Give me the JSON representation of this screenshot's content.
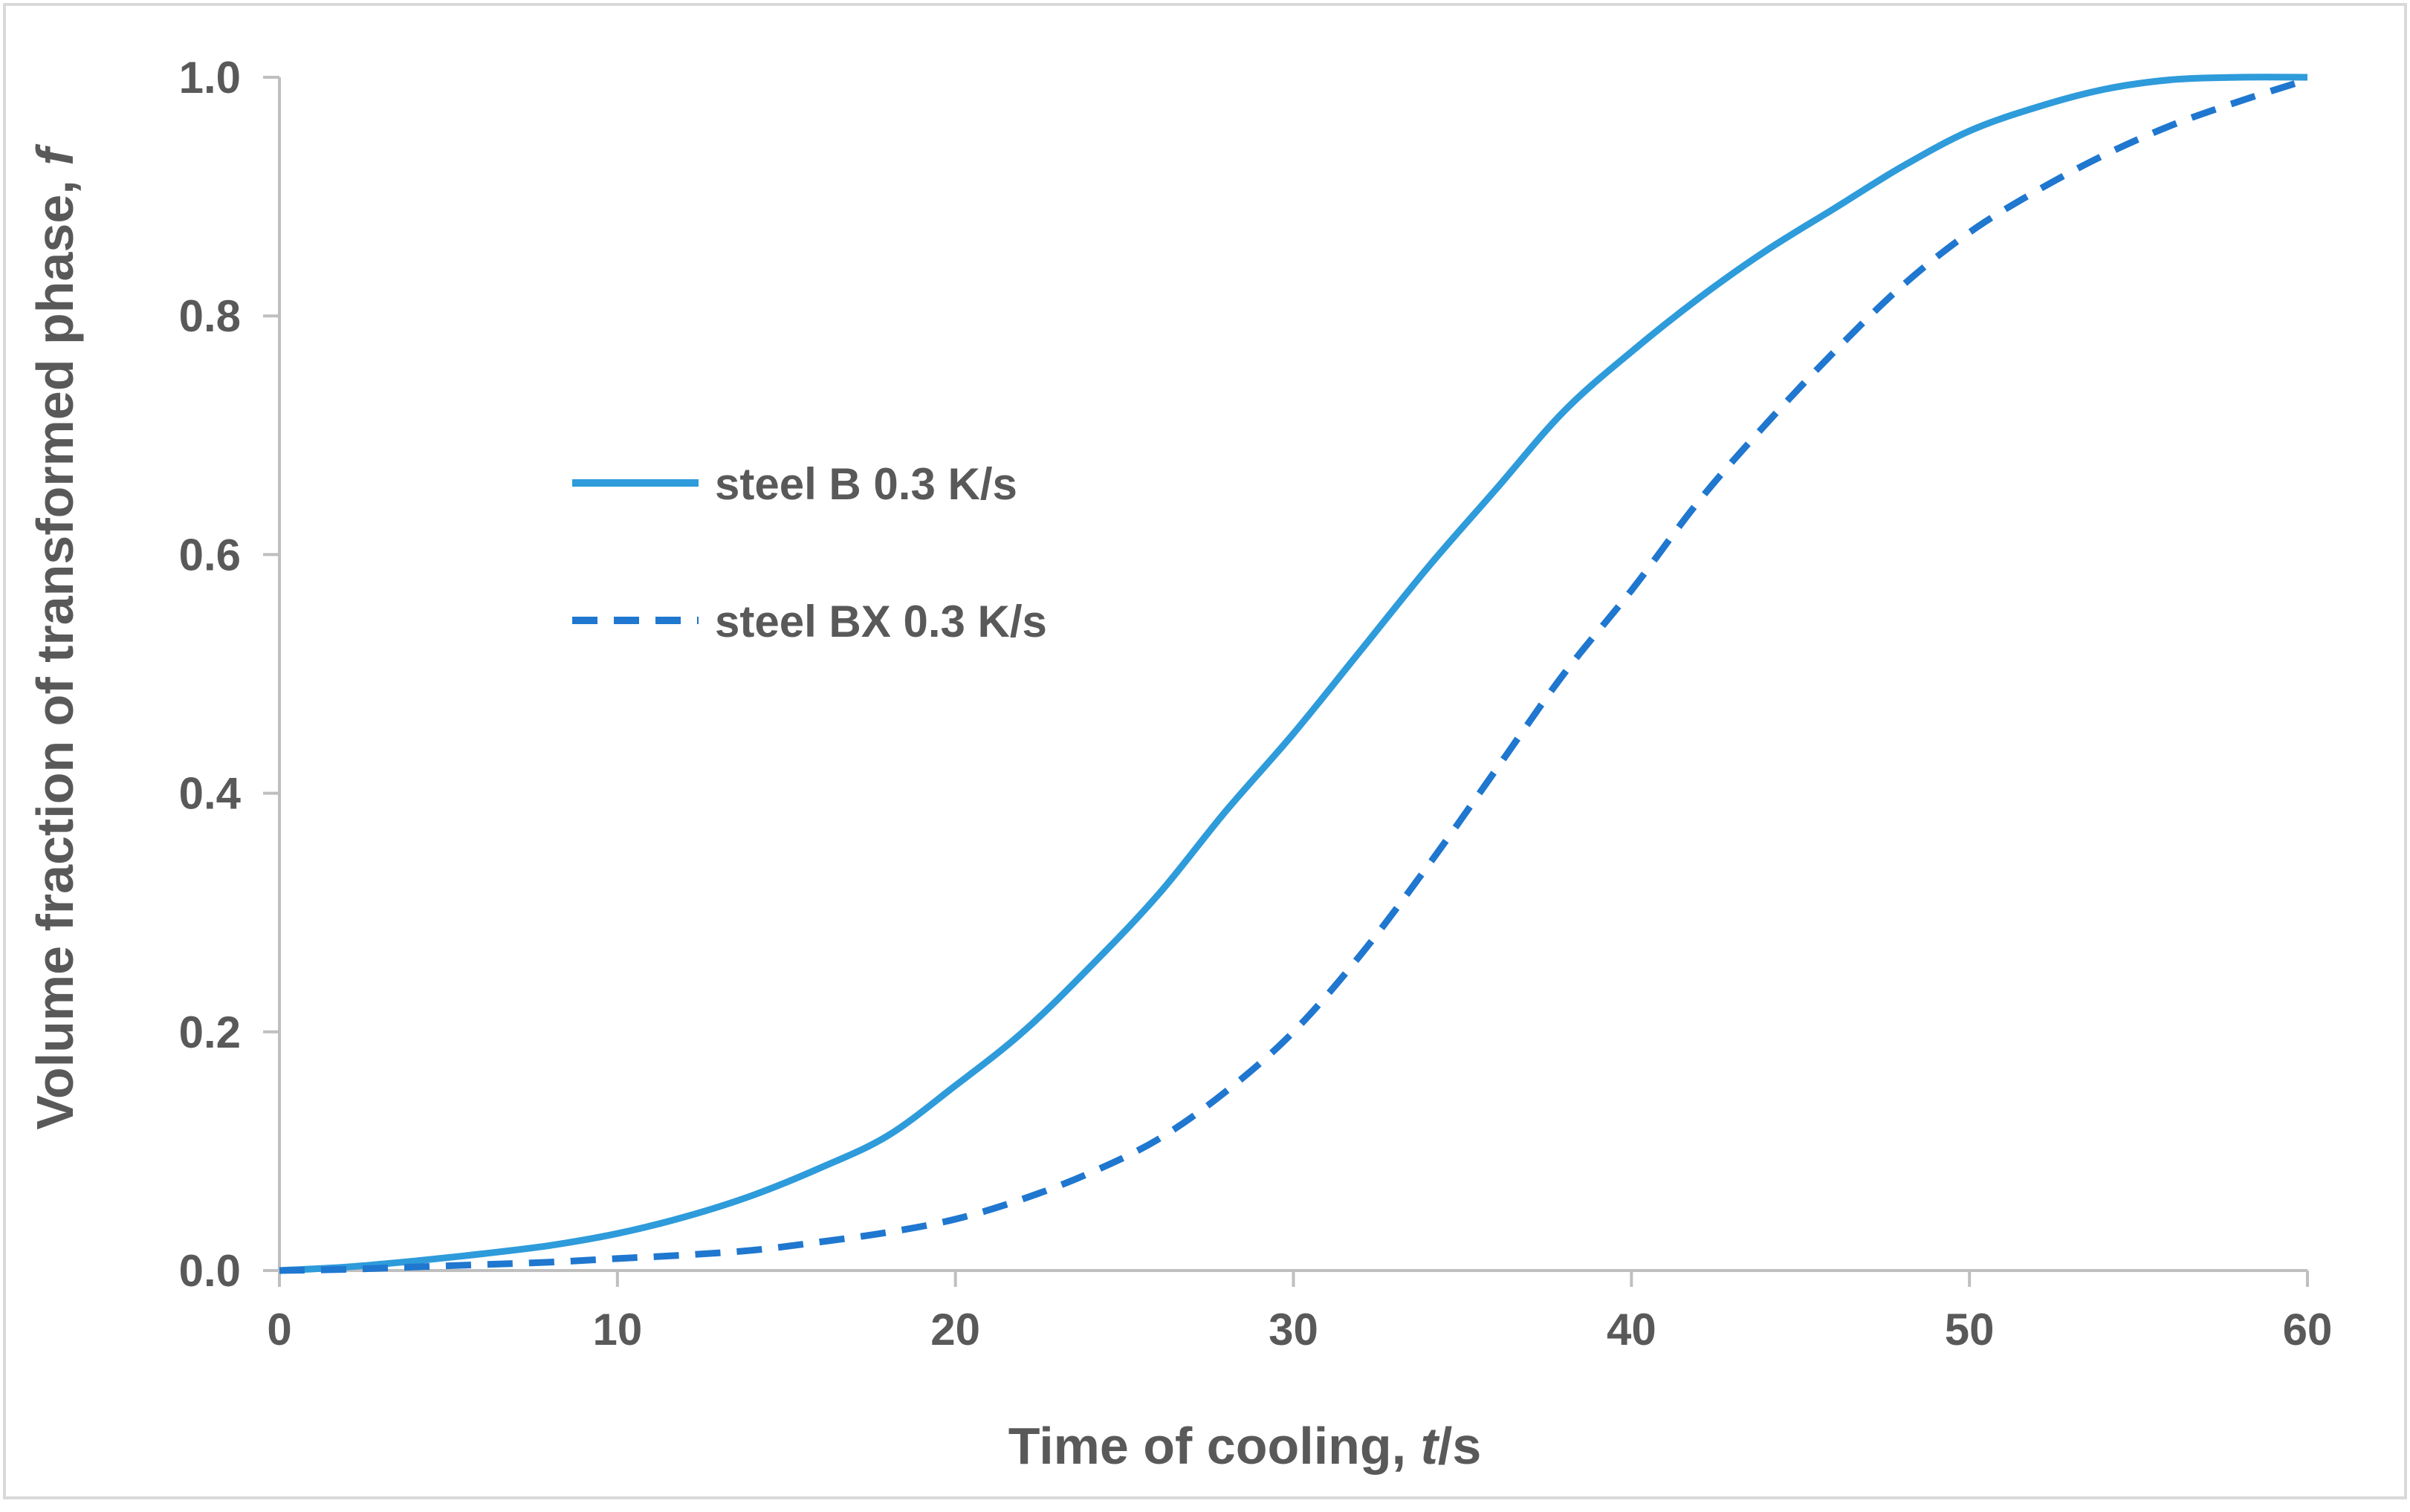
{
  "chart_data": {
    "type": "line",
    "title": "",
    "xlabel": {
      "prefix": "Time of cooling, ",
      "italic": "t",
      "suffix": "/s"
    },
    "ylabel": {
      "prefix": "Volume fraction of transformed phase, ",
      "italic": "f",
      "suffix": ""
    },
    "xlim": [
      0,
      60
    ],
    "ylim": [
      0,
      1
    ],
    "x_ticks": [
      "0",
      "10",
      "20",
      "30",
      "40",
      "50",
      "60"
    ],
    "y_ticks": [
      "0.0",
      "0.2",
      "0.4",
      "0.6",
      "0.8",
      "1.0"
    ],
    "grid": false,
    "legend_position": "upper-left-inside",
    "series": [
      {
        "name": "steel B 0.3 K/s",
        "color": "#2E9BDA",
        "style": "solid",
        "x": [
          0,
          2,
          4,
          6,
          8,
          10,
          12,
          14,
          16,
          18,
          20,
          22,
          24,
          26,
          28,
          30,
          32,
          34,
          36,
          38,
          40,
          42,
          44,
          46,
          48,
          50,
          52,
          54,
          56,
          58,
          60
        ],
        "y": [
          0.0,
          0.003,
          0.008,
          0.014,
          0.021,
          0.031,
          0.045,
          0.063,
          0.086,
          0.113,
          0.155,
          0.2,
          0.255,
          0.315,
          0.385,
          0.45,
          0.52,
          0.59,
          0.655,
          0.72,
          0.77,
          0.815,
          0.855,
          0.89,
          0.925,
          0.955,
          0.975,
          0.99,
          0.998,
          1.0,
          1.0
        ]
      },
      {
        "name": "steel BX 0.3 K/s",
        "color": "#1F77CF",
        "style": "dashed",
        "x": [
          0,
          2,
          4,
          6,
          8,
          10,
          12,
          14,
          16,
          18,
          20,
          22,
          24,
          26,
          28,
          30,
          32,
          34,
          36,
          38,
          40,
          42,
          44,
          46,
          48,
          50,
          52,
          54,
          56,
          58,
          60
        ],
        "y": [
          0.0,
          0.001,
          0.003,
          0.005,
          0.007,
          0.01,
          0.013,
          0.017,
          0.024,
          0.032,
          0.043,
          0.06,
          0.082,
          0.11,
          0.15,
          0.2,
          0.265,
          0.34,
          0.42,
          0.5,
          0.57,
          0.645,
          0.71,
          0.77,
          0.825,
          0.87,
          0.905,
          0.935,
          0.96,
          0.98,
          0.998
        ]
      }
    ]
  }
}
